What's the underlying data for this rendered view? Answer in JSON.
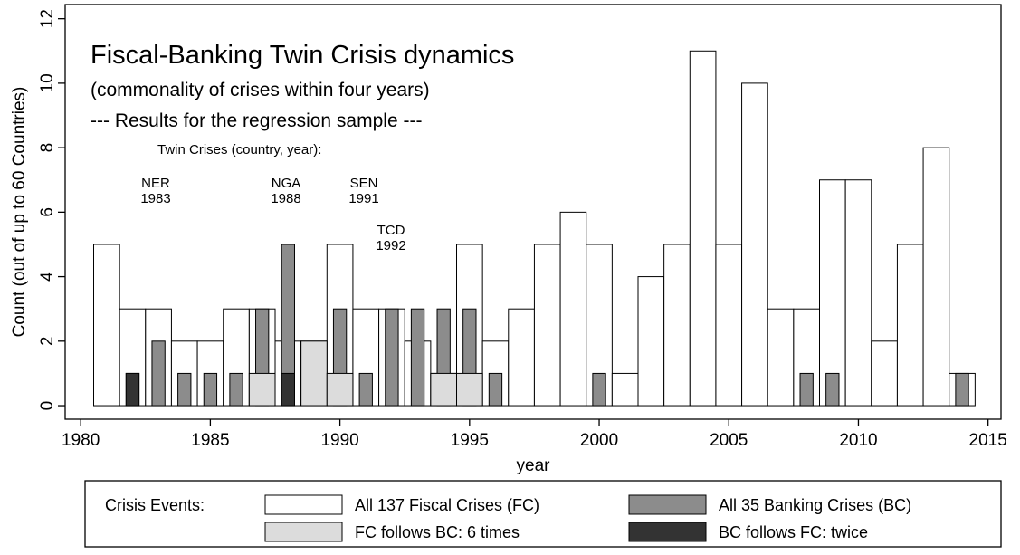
{
  "chart_data": {
    "type": "histogram",
    "title": "Fiscal-Banking Twin Crisis dynamics",
    "subtitle": "(commonality of crises within four years)",
    "note": "--- Results for the regression sample ---",
    "annotations": [
      "Twin Crises (country, year):",
      "NER",
      "1983",
      "NGA",
      "1988",
      "SEN",
      "1991",
      "TCD",
      "1992"
    ],
    "x_label": "year",
    "y_label": "Count (out of up to 60 Countries)",
    "legend_title": "Crisis Events:",
    "bins": [
      1980.5,
      1981.5,
      1982.5,
      1983.5,
      1984.5,
      1985.5,
      1986.5,
      1987.5,
      1988.5,
      1989.5,
      1990.5,
      1991.5,
      1992.5,
      1993.5,
      1994.5,
      1995.5,
      1996.5,
      1997.5,
      1998.5,
      1999.5,
      2000.5,
      2001.5,
      2002.5,
      2003.5,
      2004.5,
      2005.5,
      2006.5,
      2007.5,
      2008.5,
      2009.5,
      2010.5,
      2011.5,
      2012.5,
      2013.5,
      2014.5
    ],
    "series": [
      {
        "name": "All 137 Fiscal Crises (FC)",
        "color": "#ffffff",
        "values": [
          5,
          3,
          3,
          2,
          2,
          3,
          3,
          2,
          2,
          5,
          3,
          3,
          2,
          1,
          5,
          2,
          3,
          5,
          6,
          5,
          1,
          4,
          5,
          11,
          5,
          10,
          3,
          3,
          7,
          7,
          2,
          5,
          8,
          1
        ]
      },
      {
        "name": "All 35 Banking Crises (BC)",
        "color": "#8c8c8c",
        "values": [
          0,
          1,
          2,
          1,
          1,
          1,
          3,
          5,
          0,
          3,
          1,
          3,
          3,
          3,
          3,
          1,
          0,
          0,
          0,
          1,
          0,
          0,
          0,
          0,
          0,
          0,
          0,
          1,
          1,
          0,
          0,
          0,
          0,
          1
        ]
      },
      {
        "name": "FC follows BC: 6 times",
        "color": "#dcdcdc",
        "values": [
          0,
          0,
          0,
          0,
          0,
          0,
          1,
          0,
          2,
          1,
          0,
          0,
          0,
          1,
          1,
          0,
          0,
          0,
          0,
          0,
          0,
          0,
          0,
          0,
          0,
          0,
          0,
          0,
          0,
          0,
          0,
          0,
          0,
          0
        ]
      },
      {
        "name": "BC follows FC: twice",
        "color": "#333333",
        "values": [
          0,
          1,
          0,
          0,
          0,
          0,
          0,
          1,
          0,
          0,
          0,
          0,
          0,
          0,
          0,
          0,
          0,
          0,
          0,
          0,
          0,
          0,
          0,
          0,
          0,
          0,
          0,
          0,
          0,
          0,
          0,
          0,
          0,
          0
        ]
      }
    ],
    "xlim": [
      1979.4,
      2015.5
    ],
    "xticks": [
      1980,
      1985,
      1990,
      1995,
      2000,
      2005,
      2010,
      2015
    ],
    "ylim": [
      -0.42,
      12.44
    ],
    "yticks": [
      0,
      2,
      4,
      6,
      8,
      10,
      12
    ]
  }
}
